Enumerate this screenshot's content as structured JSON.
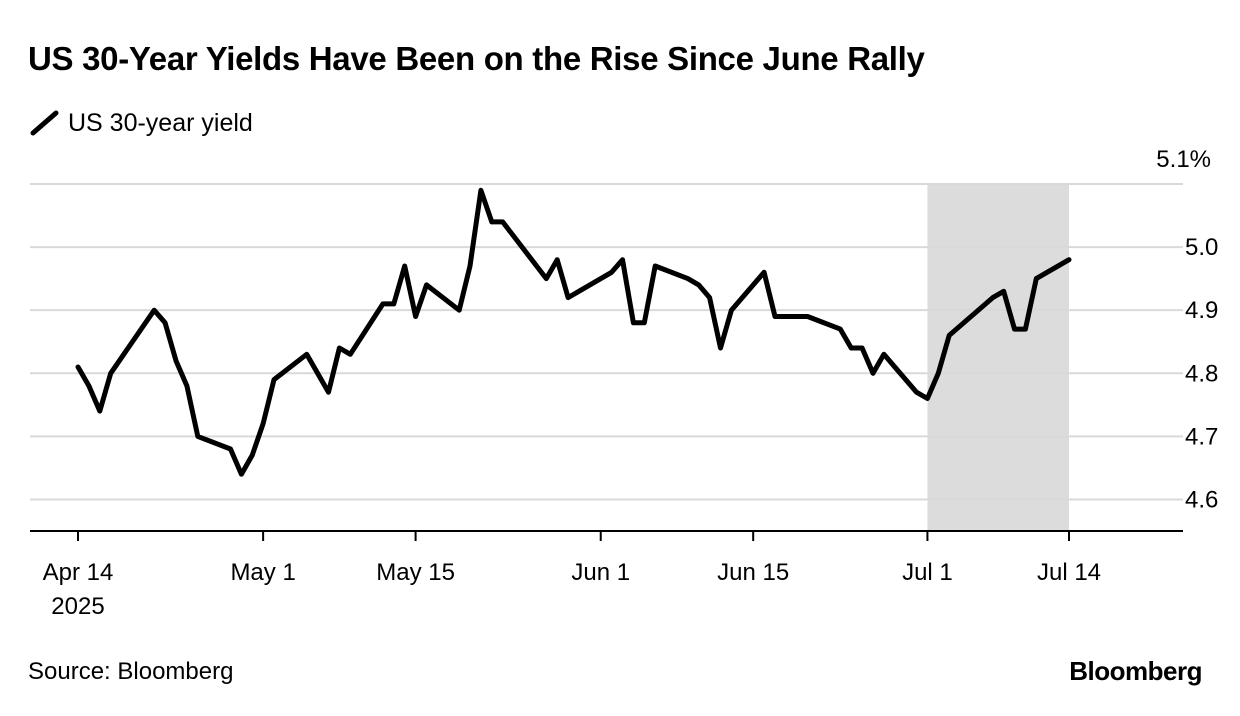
{
  "chart_data": {
    "type": "line",
    "title": "US 30-Year Yields Have Been on the Rise Since June Rally",
    "legend": "US 30-year yield",
    "source": "Source: Bloomberg",
    "brand": "Bloomberg",
    "xlabel": "",
    "ylabel": "",
    "ylim": [
      4.55,
      5.1
    ],
    "yticks": [
      "5.1%",
      "5.0",
      "4.9",
      "4.8",
      "4.7",
      "4.6"
    ],
    "xticks": [
      {
        "date": "2025-04-14",
        "label": "Apr 14",
        "sublabel": "2025"
      },
      {
        "date": "2025-05-01",
        "label": "May 1",
        "sublabel": ""
      },
      {
        "date": "2025-05-15",
        "label": "May 15",
        "sublabel": ""
      },
      {
        "date": "2025-06-01",
        "label": "Jun 1",
        "sublabel": ""
      },
      {
        "date": "2025-06-15",
        "label": "Jun 15",
        "sublabel": ""
      },
      {
        "date": "2025-07-01",
        "label": "Jul 1",
        "sublabel": ""
      },
      {
        "date": "2025-07-14",
        "label": "Jul 14",
        "sublabel": ""
      }
    ],
    "highlight": {
      "from": "2025-07-01",
      "to": "2025-07-14",
      "color": "#dcdcdc"
    },
    "series": [
      {
        "name": "US 30-year yield",
        "color": "#000000",
        "points": [
          [
            "2025-04-14",
            4.81
          ],
          [
            "2025-04-15",
            4.78
          ],
          [
            "2025-04-16",
            4.74
          ],
          [
            "2025-04-17",
            4.8
          ],
          [
            "2025-04-21",
            4.9
          ],
          [
            "2025-04-22",
            4.88
          ],
          [
            "2025-04-23",
            4.82
          ],
          [
            "2025-04-24",
            4.78
          ],
          [
            "2025-04-25",
            4.7
          ],
          [
            "2025-04-28",
            4.68
          ],
          [
            "2025-04-29",
            4.64
          ],
          [
            "2025-04-30",
            4.67
          ],
          [
            "2025-05-01",
            4.72
          ],
          [
            "2025-05-02",
            4.79
          ],
          [
            "2025-05-05",
            4.83
          ],
          [
            "2025-05-06",
            4.8
          ],
          [
            "2025-05-07",
            4.77
          ],
          [
            "2025-05-08",
            4.84
          ],
          [
            "2025-05-09",
            4.83
          ],
          [
            "2025-05-12",
            4.91
          ],
          [
            "2025-05-13",
            4.91
          ],
          [
            "2025-05-14",
            4.97
          ],
          [
            "2025-05-15",
            4.89
          ],
          [
            "2025-05-16",
            4.94
          ],
          [
            "2025-05-19",
            4.9
          ],
          [
            "2025-05-20",
            4.97
          ],
          [
            "2025-05-21",
            5.09
          ],
          [
            "2025-05-22",
            5.04
          ],
          [
            "2025-05-23",
            5.04
          ],
          [
            "2025-05-27",
            4.95
          ],
          [
            "2025-05-28",
            4.98
          ],
          [
            "2025-05-29",
            4.92
          ],
          [
            "2025-05-30",
            4.93
          ],
          [
            "2025-06-02",
            4.96
          ],
          [
            "2025-06-03",
            4.98
          ],
          [
            "2025-06-04",
            4.88
          ],
          [
            "2025-06-05",
            4.88
          ],
          [
            "2025-06-06",
            4.97
          ],
          [
            "2025-06-09",
            4.95
          ],
          [
            "2025-06-10",
            4.94
          ],
          [
            "2025-06-11",
            4.92
          ],
          [
            "2025-06-12",
            4.84
          ],
          [
            "2025-06-13",
            4.9
          ],
          [
            "2025-06-16",
            4.96
          ],
          [
            "2025-06-17",
            4.89
          ],
          [
            "2025-06-18",
            4.89
          ],
          [
            "2025-06-20",
            4.89
          ],
          [
            "2025-06-23",
            4.87
          ],
          [
            "2025-06-24",
            4.84
          ],
          [
            "2025-06-25",
            4.84
          ],
          [
            "2025-06-26",
            4.8
          ],
          [
            "2025-06-27",
            4.83
          ],
          [
            "2025-06-30",
            4.77
          ],
          [
            "2025-07-01",
            4.76
          ],
          [
            "2025-07-02",
            4.8
          ],
          [
            "2025-07-03",
            4.86
          ],
          [
            "2025-07-07",
            4.92
          ],
          [
            "2025-07-08",
            4.93
          ],
          [
            "2025-07-09",
            4.87
          ],
          [
            "2025-07-10",
            4.87
          ],
          [
            "2025-07-11",
            4.95
          ],
          [
            "2025-07-14",
            4.98
          ]
        ]
      }
    ]
  }
}
